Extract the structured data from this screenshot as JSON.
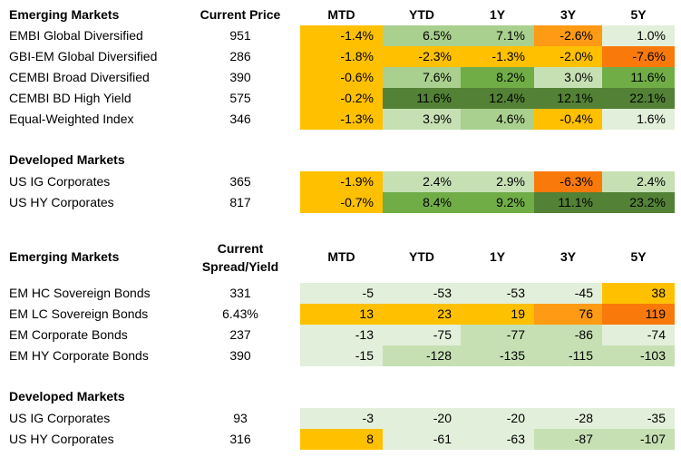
{
  "palette": {
    "orange_dark": "#F97A0B",
    "orange": "#FF9A14",
    "amber": "#FFC000",
    "green_dark": "#538135",
    "green_mid": "#70AD47",
    "green_light": "#A9D08E",
    "green_pale": "#C6E0B4",
    "green_paler": "#E2EFDA"
  },
  "table1": {
    "em_header": "Emerging Markets",
    "price_header": "Current Price",
    "col_headers": [
      "MTD",
      "YTD",
      "1Y",
      "3Y",
      "5Y"
    ],
    "em_rows": [
      {
        "name": "EMBI Global Diversified",
        "price": "951",
        "cells": [
          {
            "v": "-1.4%",
            "c": "#FFC000"
          },
          {
            "v": "6.5%",
            "c": "#A9D08E"
          },
          {
            "v": "7.1%",
            "c": "#A9D08E"
          },
          {
            "v": "-2.6%",
            "c": "#FF9A14"
          },
          {
            "v": "1.0%",
            "c": "#E2EFDA"
          }
        ]
      },
      {
        "name": "GBI-EM Global Diversified",
        "price": "286",
        "cells": [
          {
            "v": "-1.8%",
            "c": "#FFC000"
          },
          {
            "v": "-2.3%",
            "c": "#FFC000"
          },
          {
            "v": "-1.3%",
            "c": "#FFC000"
          },
          {
            "v": "-2.0%",
            "c": "#FFC000"
          },
          {
            "v": "-7.6%",
            "c": "#F97A0B"
          }
        ]
      },
      {
        "name": "CEMBI Broad Diversified",
        "price": "390",
        "cells": [
          {
            "v": "-0.6%",
            "c": "#FFC000"
          },
          {
            "v": "7.6%",
            "c": "#A9D08E"
          },
          {
            "v": "8.2%",
            "c": "#70AD47"
          },
          {
            "v": "3.0%",
            "c": "#C6E0B4"
          },
          {
            "v": "11.6%",
            "c": "#70AD47"
          }
        ]
      },
      {
        "name": "CEMBI BD High Yield",
        "price": "575",
        "cells": [
          {
            "v": "-0.2%",
            "c": "#FFC000"
          },
          {
            "v": "11.6%",
            "c": "#538135"
          },
          {
            "v": "12.4%",
            "c": "#538135"
          },
          {
            "v": "12.1%",
            "c": "#538135"
          },
          {
            "v": "22.1%",
            "c": "#538135"
          }
        ]
      },
      {
        "name": "Equal-Weighted Index",
        "price": "346",
        "cells": [
          {
            "v": "-1.3%",
            "c": "#FFC000"
          },
          {
            "v": "3.9%",
            "c": "#C6E0B4"
          },
          {
            "v": "4.6%",
            "c": "#A9D08E"
          },
          {
            "v": "-0.4%",
            "c": "#FFC000"
          },
          {
            "v": "1.6%",
            "c": "#E2EFDA"
          }
        ]
      }
    ],
    "dm_header": "Developed Markets",
    "dm_rows": [
      {
        "name": "US IG Corporates",
        "price": "365",
        "cells": [
          {
            "v": "-1.9%",
            "c": "#FFC000"
          },
          {
            "v": "2.4%",
            "c": "#C6E0B4"
          },
          {
            "v": "2.9%",
            "c": "#C6E0B4"
          },
          {
            "v": "-6.3%",
            "c": "#F97A0B"
          },
          {
            "v": "2.4%",
            "c": "#C6E0B4"
          }
        ]
      },
      {
        "name": "US HY Corporates",
        "price": "817",
        "cells": [
          {
            "v": "-0.7%",
            "c": "#FFC000"
          },
          {
            "v": "8.4%",
            "c": "#70AD47"
          },
          {
            "v": "9.2%",
            "c": "#70AD47"
          },
          {
            "v": "11.1%",
            "c": "#538135"
          },
          {
            "v": "23.2%",
            "c": "#538135"
          }
        ]
      }
    ]
  },
  "table2": {
    "em_header": "Emerging Markets",
    "spread_header_line1": "Current",
    "spread_header_line2": "Spread/Yield",
    "col_headers": [
      "MTD",
      "YTD",
      "1Y",
      "3Y",
      "5Y"
    ],
    "em_rows": [
      {
        "name": "EM HC Sovereign Bonds",
        "value": "331",
        "cells": [
          {
            "v": "-5",
            "c": "#E2EFDA"
          },
          {
            "v": "-53",
            "c": "#E2EFDA"
          },
          {
            "v": "-53",
            "c": "#E2EFDA"
          },
          {
            "v": "-45",
            "c": "#E2EFDA"
          },
          {
            "v": "38",
            "c": "#FFC000"
          }
        ]
      },
      {
        "name": "EM LC Sovereign Bonds",
        "value": "6.43%",
        "cells": [
          {
            "v": "13",
            "c": "#FFC000"
          },
          {
            "v": "23",
            "c": "#FFC000"
          },
          {
            "v": "19",
            "c": "#FFC000"
          },
          {
            "v": "76",
            "c": "#FF9A14"
          },
          {
            "v": "119",
            "c": "#F97A0B"
          }
        ]
      },
      {
        "name": "EM Corporate Bonds",
        "value": "237",
        "cells": [
          {
            "v": "-13",
            "c": "#E2EFDA"
          },
          {
            "v": "-75",
            "c": "#E2EFDA"
          },
          {
            "v": "-77",
            "c": "#C6E0B4"
          },
          {
            "v": "-86",
            "c": "#C6E0B4"
          },
          {
            "v": "-74",
            "c": "#E2EFDA"
          }
        ]
      },
      {
        "name": "EM HY Corporate Bonds",
        "value": "390",
        "cells": [
          {
            "v": "-15",
            "c": "#E2EFDA"
          },
          {
            "v": "-128",
            "c": "#C6E0B4"
          },
          {
            "v": "-135",
            "c": "#C6E0B4"
          },
          {
            "v": "-115",
            "c": "#C6E0B4"
          },
          {
            "v": "-103",
            "c": "#C6E0B4"
          }
        ]
      }
    ],
    "dm_header": "Developed Markets",
    "dm_rows": [
      {
        "name": "US IG Corporates",
        "value": "93",
        "cells": [
          {
            "v": "-3",
            "c": "#E2EFDA"
          },
          {
            "v": "-20",
            "c": "#E2EFDA"
          },
          {
            "v": "-20",
            "c": "#E2EFDA"
          },
          {
            "v": "-28",
            "c": "#E2EFDA"
          },
          {
            "v": "-35",
            "c": "#E2EFDA"
          }
        ]
      },
      {
        "name": "US HY Corporates",
        "value": "316",
        "cells": [
          {
            "v": "8",
            "c": "#FFC000"
          },
          {
            "v": "-61",
            "c": "#E2EFDA"
          },
          {
            "v": "-63",
            "c": "#E2EFDA"
          },
          {
            "v": "-87",
            "c": "#C6E0B4"
          },
          {
            "v": "-107",
            "c": "#C6E0B4"
          }
        ]
      }
    ]
  }
}
